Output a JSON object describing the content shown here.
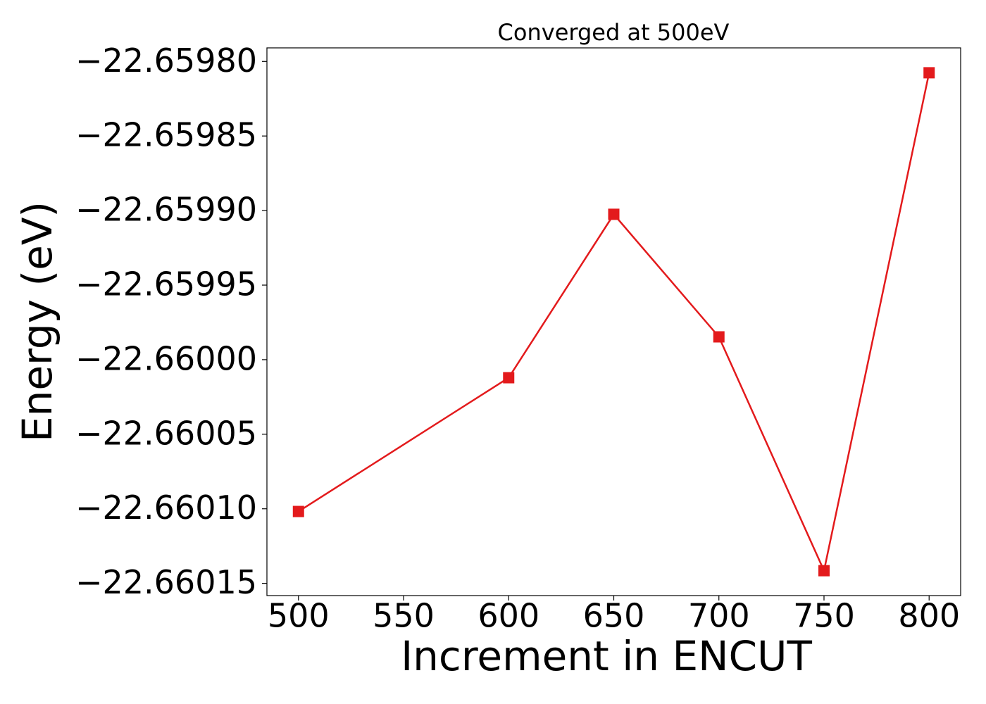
{
  "chart_data": {
    "type": "line",
    "title": "Converged at 500eV",
    "x_label": "Increment in ENCUT",
    "y_label": "Energy (eV)",
    "x": [
      500,
      600,
      650,
      700,
      750,
      800
    ],
    "series": [
      {
        "name": "Energy",
        "color": "#e31a1c",
        "marker": "square",
        "values": [
          -22.6601018,
          -22.6600121,
          -22.6599025,
          -22.6599847,
          -22.6601415,
          -22.6598076
        ]
      }
    ],
    "xlim": [
      485,
      815
    ],
    "xticks": [
      500,
      550,
      600,
      650,
      700,
      750,
      800
    ],
    "ylim": [
      -22.6601582,
      -22.6597909
    ],
    "yticks": [
      {
        "value": -22.6598,
        "label": "−22.65980"
      },
      {
        "value": -22.65985,
        "label": "−22.65985"
      },
      {
        "value": -22.6599,
        "label": "−22.65990"
      },
      {
        "value": -22.65995,
        "label": "−22.65995"
      },
      {
        "value": -22.66,
        "label": "−22.66000"
      },
      {
        "value": -22.66005,
        "label": "−22.66005"
      },
      {
        "value": -22.6601,
        "label": "−22.66010"
      },
      {
        "value": -22.66015,
        "label": "−22.66015"
      }
    ],
    "grid": false
  }
}
